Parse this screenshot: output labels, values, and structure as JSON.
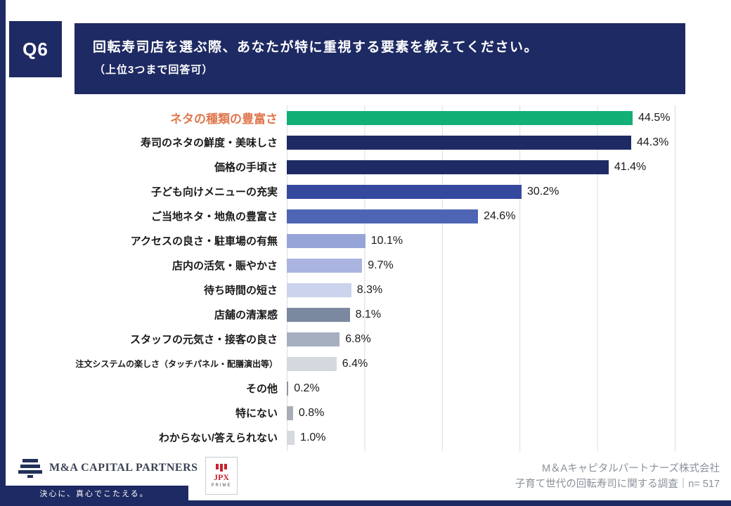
{
  "question": {
    "number": "Q6",
    "title": "回転寿司店を選ぶ際、あなたが特に重視する要素を教えてください。",
    "subtitle": "（上位3つまで回答可）"
  },
  "chart_data": {
    "type": "bar",
    "orientation": "horizontal",
    "title": "",
    "categories": [
      "ネタの種類の豊富さ",
      "寿司のネタの鮮度・美味しさ",
      "価格の手頃さ",
      "子ども向けメニューの充実",
      "ご当地ネタ・地魚の豊富さ",
      "アクセスの良さ・駐車場の有無",
      "店内の活気・賑やかさ",
      "待ち時間の短さ",
      "店舗の清潔感",
      "スタッフの元気さ・接客の良さ",
      "注文システムの楽しさ（タッチパネル・配膳演出等）",
      "その他",
      "特にない",
      "わからない/答えられない"
    ],
    "values": [
      44.5,
      44.3,
      41.4,
      30.2,
      24.6,
      10.1,
      9.7,
      8.3,
      8.1,
      6.8,
      6.4,
      0.2,
      0.8,
      1.0
    ],
    "value_labels": [
      "44.5%",
      "44.3%",
      "41.4%",
      "30.2%",
      "24.6%",
      "10.1%",
      "9.7%",
      "8.3%",
      "8.1%",
      "6.8%",
      "6.4%",
      "0.2%",
      "0.8%",
      "1.0%"
    ],
    "bar_colors": [
      "#12af76",
      "#1e2a63",
      "#1e2a63",
      "#34499e",
      "#4e64b4",
      "#97a4d8",
      "#aab4de",
      "#ccd3ec",
      "#7b89a0",
      "#a5afbf",
      "#d4d8df",
      "#8f959e",
      "#a9aeb6",
      "#d6d9de"
    ],
    "xlim": [
      0,
      50
    ],
    "gridline_step": 10,
    "grid": true,
    "legend": false,
    "highlight_index": 0,
    "highlight_label_color": "#e0784f"
  },
  "footer": {
    "logo_text": "M&A CAPITAL PARTNERS",
    "logo_tagline": "決心に、真心でこたえる。",
    "jpx_label": "JPX",
    "jpx_sub": "PRIME",
    "company": "M＆Aキャピタルパートナーズ株式会社",
    "survey": "子育て世代の回転寿司に関する調査｜n= 517"
  },
  "colors": {
    "navy": "#1e2a63",
    "highlight_green": "#12af76",
    "highlight_orange": "#e0784f"
  }
}
